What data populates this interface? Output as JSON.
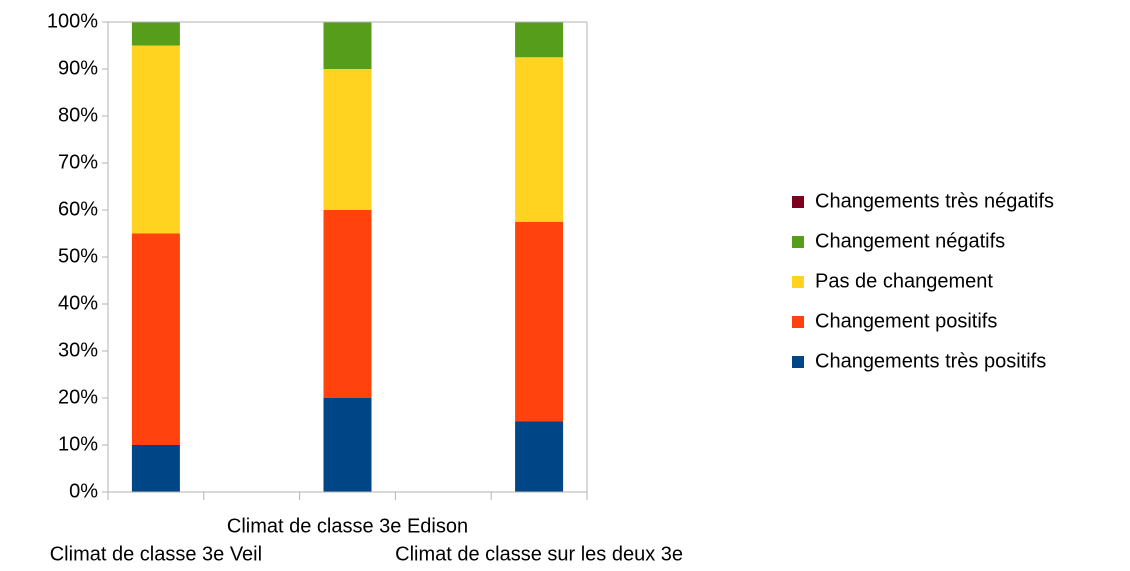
{
  "chart_data": {
    "type": "stacked_bar",
    "categories": [
      "Climat de classe 3e Veil",
      "Climat de classe 3e Edison",
      "Climat de classe sur les deux 3e"
    ],
    "series": [
      {
        "name": "Changements très positifs",
        "color": "#004586",
        "values": [
          10,
          20,
          15
        ]
      },
      {
        "name": "Changement positifs",
        "color": "#ff420e",
        "values": [
          45,
          40,
          42.5
        ]
      },
      {
        "name": "Pas de changement",
        "color": "#ffd320",
        "values": [
          40,
          30,
          35
        ]
      },
      {
        "name": "Changement négatifs",
        "color": "#579d1c",
        "values": [
          5,
          10,
          7.5
        ]
      },
      {
        "name": "Changements très négatifs",
        "color": "#7e0021",
        "values": [
          0,
          0,
          0
        ]
      }
    ],
    "ylim": [
      0,
      100
    ],
    "yticks": [
      {
        "value": 0,
        "label": "0%"
      },
      {
        "value": 10,
        "label": "10%"
      },
      {
        "value": 20,
        "label": "20%"
      },
      {
        "value": 30,
        "label": "30%"
      },
      {
        "value": 40,
        "label": "40%"
      },
      {
        "value": 50,
        "label": "50%"
      },
      {
        "value": 60,
        "label": "60%"
      },
      {
        "value": 70,
        "label": "70%"
      },
      {
        "value": 80,
        "label": "80%"
      },
      {
        "value": 90,
        "label": "90%"
      },
      {
        "value": 100,
        "label": "100%"
      }
    ],
    "grid": false,
    "legend": "right"
  }
}
